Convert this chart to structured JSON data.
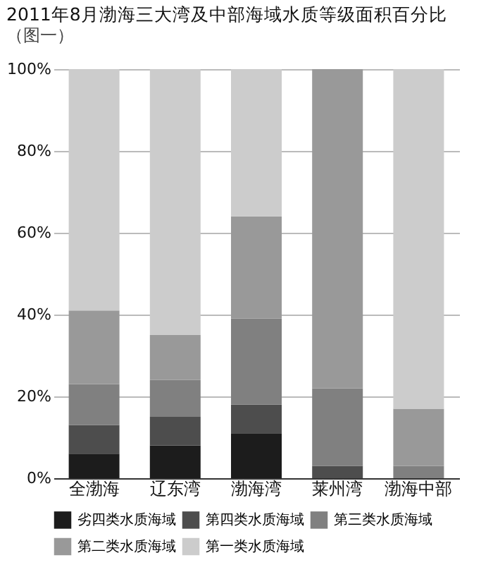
{
  "chart_data": {
    "type": "bar",
    "title": "2011年8月渤海三大湾及中部海域水质等级面积百分比",
    "subtitle": "（图一）",
    "categories": [
      "全渤海",
      "辽东湾",
      "渤海湾",
      "莱州湾",
      "渤海中部"
    ],
    "stacked": true,
    "series": [
      {
        "name": "劣四类水质海域",
        "color": "#1c1c1c",
        "values": [
          6,
          8,
          11,
          0,
          0
        ]
      },
      {
        "name": "第四类水质海域",
        "color": "#4d4d4d",
        "values": [
          7,
          7,
          7,
          3,
          0
        ]
      },
      {
        "name": "第三类水质海域",
        "color": "#808080",
        "values": [
          10,
          9,
          21,
          19,
          3
        ]
      },
      {
        "name": "第二类水质海域",
        "color": "#999999",
        "values": [
          18,
          11,
          25,
          78,
          14
        ]
      },
      {
        "name": "第一类水质海域",
        "color": "#cccccc",
        "values": [
          59,
          65,
          36,
          0,
          83
        ]
      }
    ],
    "ylim": [
      0,
      100
    ],
    "yticks": [
      {
        "value": 0,
        "label": "0%"
      },
      {
        "value": 20,
        "label": "20%"
      },
      {
        "value": 40,
        "label": "40%"
      },
      {
        "value": 60,
        "label": "60%"
      },
      {
        "value": 80,
        "label": "80%"
      },
      {
        "value": 100,
        "label": "100%"
      }
    ],
    "grid": "y",
    "legend": "bottom"
  }
}
